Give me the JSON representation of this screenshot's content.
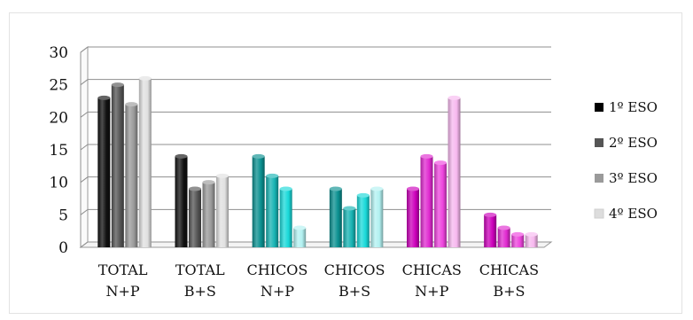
{
  "chart_data": {
    "type": "bar",
    "style": "3d-clustered-cylinder",
    "title": "",
    "xlabel": "",
    "ylabel": "",
    "ylim": [
      0,
      30
    ],
    "yticks": [
      0,
      5,
      10,
      15,
      20,
      25,
      30
    ],
    "grid": true,
    "legend_position": "right",
    "categories": [
      {
        "line1": "TOTAL",
        "line2": "N+P"
      },
      {
        "line1": "TOTAL",
        "line2": "B+S"
      },
      {
        "line1": "CHICOS",
        "line2": "N+P"
      },
      {
        "line1": "CHICOS",
        "line2": "B+S"
      },
      {
        "line1": "CHICAS",
        "line2": "N+P"
      },
      {
        "line1": "CHICAS",
        "line2": "B+S"
      }
    ],
    "series": [
      {
        "name": "1º ESO",
        "values": [
          23,
          14,
          14,
          9,
          9,
          5
        ]
      },
      {
        "name": "2º ESO",
        "values": [
          25,
          9,
          11,
          6,
          14,
          3
        ]
      },
      {
        "name": "3º ESO",
        "values": [
          22,
          10,
          9,
          8,
          13,
          2
        ]
      },
      {
        "name": "4º ESO",
        "values": [
          26,
          11,
          3,
          9,
          23,
          2
        ]
      }
    ],
    "legend_colors": [
      "#000000",
      "#555555",
      "#9a9a9a",
      "#dddddd"
    ],
    "category_palettes": [
      [
        "#111111",
        "#555555",
        "#9a9a9a",
        "#e0e0e0"
      ],
      [
        "#111111",
        "#555555",
        "#9a9a9a",
        "#e0e0e0"
      ],
      [
        "#0a9090",
        "#17b3b3",
        "#19d9d9",
        "#b2f1f1"
      ],
      [
        "#0a9090",
        "#17b3b3",
        "#19d9d9",
        "#b2f1f1"
      ],
      [
        "#cc00bb",
        "#e02ad0",
        "#ee44dd",
        "#f7b8ef"
      ],
      [
        "#cc00bb",
        "#e02ad0",
        "#ee44dd",
        "#f7b8ef"
      ]
    ]
  }
}
